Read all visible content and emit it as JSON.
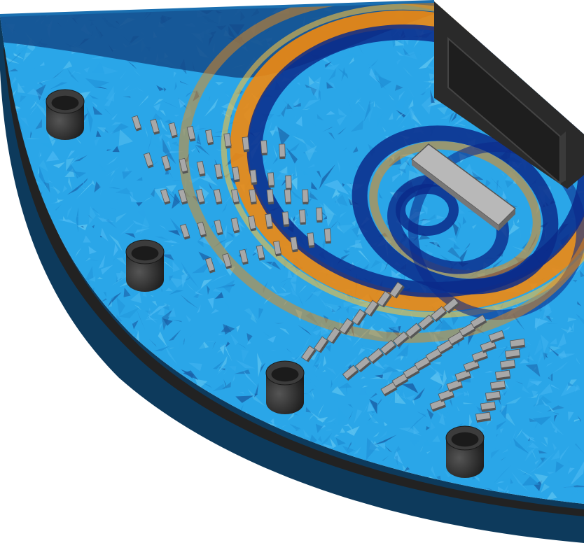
{
  "scene": {
    "description_label": "",
    "colors": {
      "background": "#ffffff",
      "plate_side": "#0d3a5c",
      "plate_side_dark": "#082a45",
      "plate_edge_dark": "#222222",
      "field_base": "#2aa6e8",
      "field_light": "#5cc3f0",
      "field_dark": "#1a5fa6",
      "field_deep": "#0b2a8a",
      "wave_orange": "#f08a10",
      "wave_yellow": "#f5c040",
      "wave_red": "#d04010",
      "component_gray": "#a8a8a8",
      "component_dark": "#555555",
      "cylinder": "#2b2b2b",
      "cylinder_top": "#3c3c3c",
      "chip": "#b0b0b0",
      "connector": "#2a2a2a"
    },
    "icons": [
      "cylinder-mount-icon",
      "chip-icon",
      "connector-icon",
      "smd-component-icon"
    ]
  }
}
